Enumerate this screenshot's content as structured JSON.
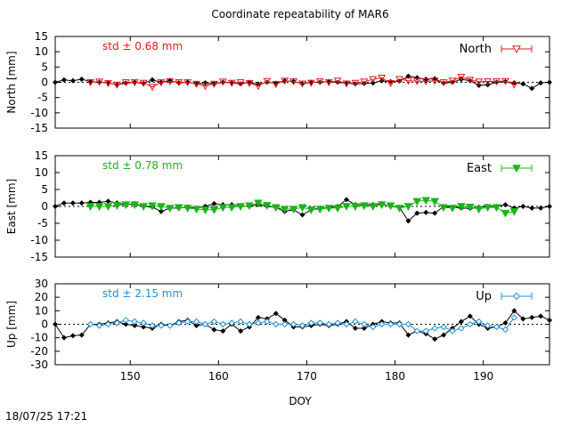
{
  "title": "Coordinate repeatability of MAR6",
  "timestamp": "18/07/25 17:21",
  "xlabel": "DOY",
  "colors": {
    "north": "#e41a1c",
    "east": "#1db31d",
    "up": "#1e8fdc",
    "ref": "#000000"
  },
  "chart_data": [
    {
      "type": "line",
      "panel": "north",
      "ylabel": "North [mm]",
      "legend": "North",
      "legend_position": "top-right",
      "std_label": "std ± 0.68 mm",
      "xlim": [
        141.5,
        197.5
      ],
      "ylim": [
        -15,
        15
      ],
      "yticks": [
        -15,
        -10,
        -5,
        0,
        5,
        10,
        15
      ],
      "series": [
        {
          "role": "reference",
          "x": [
            141.5,
            142.5,
            143.5,
            144.5,
            145.5,
            146.5,
            147.5,
            148.5,
            149.5,
            150.5,
            151.5,
            152.5,
            153.5,
            154.5,
            155.5,
            156.5,
            157.5,
            158.5,
            159.5,
            160.5,
            161.5,
            162.5,
            163.5,
            164.5,
            165.5,
            166.5,
            167.5,
            168.5,
            169.5,
            170.5,
            171.5,
            172.5,
            173.5,
            174.5,
            175.5,
            176.5,
            177.5,
            178.5,
            179.5,
            180.5,
            181.5,
            182.5,
            183.5,
            184.5,
            185.5,
            186.5,
            187.5,
            188.5,
            189.5,
            190.5,
            191.5,
            192.5,
            193.5,
            194.5,
            195.5,
            196.5,
            197.5
          ],
          "y": [
            0,
            0.8,
            0.5,
            1,
            0.2,
            0,
            -0.2,
            -0.8,
            -0.3,
            0,
            -0.4,
            0.8,
            0,
            0.6,
            -0.2,
            0,
            -0.5,
            -0.2,
            -0.5,
            0,
            -0.2,
            -0.5,
            0,
            -0.6,
            0,
            -0.3,
            0.5,
            0.3,
            -0.5,
            0,
            0,
            0.2,
            0,
            -0.3,
            -0.5,
            -0.4,
            -0.2,
            0.5,
            0.2,
            0.4,
            2,
            1.5,
            1,
            1.2,
            -0.3,
            0,
            1,
            0.5,
            -1,
            -0.8,
            0,
            0.2,
            -0.2,
            -0.5,
            -2,
            -0.2,
            0
          ]
        },
        {
          "role": "North",
          "x": [
            145.5,
            146.5,
            147.5,
            148.5,
            149.5,
            150.5,
            151.5,
            152.5,
            153.5,
            154.5,
            155.5,
            156.5,
            157.5,
            158.5,
            159.5,
            160.5,
            161.5,
            162.5,
            163.5,
            164.5,
            165.5,
            166.5,
            167.5,
            168.5,
            169.5,
            170.5,
            171.5,
            172.5,
            173.5,
            174.5,
            175.5,
            176.5,
            177.5,
            178.5,
            179.5,
            180.5,
            181.5,
            182.5,
            183.5,
            184.5,
            185.5,
            186.5,
            187.5,
            188.5,
            189.5,
            190.5,
            191.5,
            192.5,
            193.5
          ],
          "y": [
            0,
            0.2,
            -0.3,
            -0.8,
            0,
            0,
            -0.2,
            -1.5,
            0,
            0.3,
            0,
            0,
            -0.5,
            -1.2,
            -0.5,
            0.2,
            -0.2,
            0,
            -0.3,
            -1.2,
            0.4,
            -0.6,
            0.5,
            0.3,
            -0.4,
            -0.2,
            0.3,
            0,
            0.5,
            -0.4,
            -0.2,
            0.2,
            1,
            1.5,
            -0.3,
            1,
            0.5,
            0.4,
            0.3,
            0.5,
            0,
            0.5,
            1.8,
            0.8,
            0.2,
            0.3,
            0.3,
            0.4,
            -0.8
          ]
        }
      ]
    },
    {
      "type": "line",
      "panel": "east",
      "ylabel": "East [mm]",
      "legend": "East",
      "legend_position": "top-right",
      "std_label": "std ± 0.78 mm",
      "xlim": [
        141.5,
        197.5
      ],
      "ylim": [
        -15,
        15
      ],
      "yticks": [
        -15,
        -10,
        -5,
        0,
        5,
        10,
        15
      ],
      "series": [
        {
          "role": "reference",
          "x": [
            141.5,
            142.5,
            143.5,
            144.5,
            145.5,
            146.5,
            147.5,
            148.5,
            149.5,
            150.5,
            151.5,
            152.5,
            153.5,
            154.5,
            155.5,
            156.5,
            157.5,
            158.5,
            159.5,
            160.5,
            161.5,
            162.5,
            163.5,
            164.5,
            165.5,
            166.5,
            167.5,
            168.5,
            169.5,
            170.5,
            171.5,
            172.5,
            173.5,
            174.5,
            175.5,
            176.5,
            177.5,
            178.5,
            179.5,
            180.5,
            181.5,
            182.5,
            183.5,
            184.5,
            185.5,
            186.5,
            187.5,
            188.5,
            189.5,
            190.5,
            191.5,
            192.5,
            193.5,
            194.5,
            195.5,
            196.5,
            197.5
          ],
          "y": [
            0,
            1,
            1,
            1,
            1.2,
            1.2,
            1.5,
            1,
            0.5,
            0.8,
            0,
            -0.2,
            -1.5,
            -0.5,
            -0.5,
            -0.2,
            -0.5,
            0,
            0.8,
            0.5,
            0.5,
            0.2,
            0,
            0.5,
            0,
            -0.3,
            -1.5,
            -1,
            -2.5,
            -1,
            -0.5,
            -0.5,
            0,
            2,
            0.5,
            0.5,
            0.5,
            0.8,
            0,
            -0.3,
            -4.3,
            -2,
            -1.8,
            -2,
            0,
            -0.3,
            -0.5,
            -0.6,
            -0.3,
            0,
            0,
            0.5,
            -0.5,
            0,
            -0.5,
            -0.5,
            0
          ]
        },
        {
          "role": "East",
          "x": [
            145.5,
            146.5,
            147.5,
            148.5,
            149.5,
            150.5,
            151.5,
            152.5,
            153.5,
            154.5,
            155.5,
            156.5,
            157.5,
            158.5,
            159.5,
            160.5,
            161.5,
            162.5,
            163.5,
            164.5,
            165.5,
            166.5,
            167.5,
            168.5,
            169.5,
            170.5,
            171.5,
            172.5,
            173.5,
            174.5,
            175.5,
            176.5,
            177.5,
            178.5,
            179.5,
            180.5,
            181.5,
            182.5,
            183.5,
            184.5,
            185.5,
            186.5,
            187.5,
            188.5,
            189.5,
            190.5,
            191.5,
            192.5,
            193.5
          ],
          "y": [
            0,
            0,
            0,
            0.3,
            0.5,
            0.5,
            0,
            0.2,
            0,
            -0.5,
            -0.3,
            -0.5,
            -0.8,
            -1,
            -1,
            -0.3,
            -0.3,
            0,
            0.2,
            1,
            0.3,
            -0.3,
            -0.8,
            -0.8,
            -0.3,
            -1,
            -0.8,
            -0.5,
            -0.5,
            0,
            0,
            0.2,
            0,
            0.5,
            0.2,
            -0.5,
            0,
            1.5,
            1.8,
            1.5,
            -0.3,
            -0.5,
            0,
            -0.2,
            -0.8,
            -0.3,
            -0.3,
            -2,
            -1.5
          ]
        }
      ]
    },
    {
      "type": "line",
      "panel": "up",
      "ylabel": "Up [mm]",
      "legend": "Up",
      "legend_position": "top-right",
      "std_label": "std ± 2.15 mm",
      "xlim": [
        141.5,
        197.5
      ],
      "ylim": [
        -30,
        30
      ],
      "yticks": [
        -30,
        -20,
        -10,
        0,
        10,
        20,
        30
      ],
      "series": [
        {
          "role": "reference",
          "x": [
            141.5,
            142.5,
            143.5,
            144.5,
            145.5,
            146.5,
            147.5,
            148.5,
            149.5,
            150.5,
            151.5,
            152.5,
            153.5,
            154.5,
            155.5,
            156.5,
            157.5,
            158.5,
            159.5,
            160.5,
            161.5,
            162.5,
            163.5,
            164.5,
            165.5,
            166.5,
            167.5,
            168.5,
            169.5,
            170.5,
            171.5,
            172.5,
            173.5,
            174.5,
            175.5,
            176.5,
            177.5,
            178.5,
            179.5,
            180.5,
            181.5,
            182.5,
            183.5,
            184.5,
            185.5,
            186.5,
            187.5,
            188.5,
            189.5,
            190.5,
            191.5,
            192.5,
            193.5,
            194.5,
            195.5,
            196.5,
            197.5
          ],
          "y": [
            0,
            -10,
            -8.5,
            -8,
            0,
            0,
            1,
            2,
            0,
            -1,
            -2,
            -3,
            0,
            -1,
            2,
            3,
            -1,
            0,
            -4,
            -5,
            0,
            -5,
            -2,
            5,
            4,
            8,
            3,
            -2,
            -2,
            -1,
            0,
            -1,
            0,
            2,
            -3,
            -3,
            0,
            2,
            1,
            1,
            -8,
            -5,
            -7,
            -11,
            -8,
            -3,
            2,
            6,
            0,
            -3,
            -2,
            1,
            10,
            4,
            5,
            6,
            3
          ]
        },
        {
          "role": "Up",
          "x": [
            145.5,
            146.5,
            147.5,
            148.5,
            149.5,
            150.5,
            151.5,
            152.5,
            153.5,
            154.5,
            155.5,
            156.5,
            157.5,
            158.5,
            159.5,
            160.5,
            161.5,
            162.5,
            163.5,
            164.5,
            165.5,
            166.5,
            167.5,
            168.5,
            169.5,
            170.5,
            171.5,
            172.5,
            173.5,
            174.5,
            175.5,
            176.5,
            177.5,
            178.5,
            179.5,
            180.5,
            181.5,
            182.5,
            183.5,
            184.5,
            185.5,
            186.5,
            187.5,
            188.5,
            189.5,
            190.5,
            191.5,
            192.5,
            193.5
          ],
          "y": [
            0,
            -1,
            0,
            1,
            3,
            2,
            1,
            -1,
            -1,
            -1,
            1,
            2,
            2,
            0,
            2,
            0,
            1,
            2,
            0,
            1,
            2,
            0,
            0,
            0,
            -1,
            1,
            1,
            0,
            1,
            0,
            2,
            0,
            -2,
            0,
            0,
            0,
            0,
            -5,
            -5,
            -3,
            -2,
            -5,
            -3,
            0,
            2,
            -1,
            -2,
            -4,
            5
          ]
        }
      ]
    }
  ],
  "xticks": [
    150,
    160,
    170,
    180,
    190
  ]
}
